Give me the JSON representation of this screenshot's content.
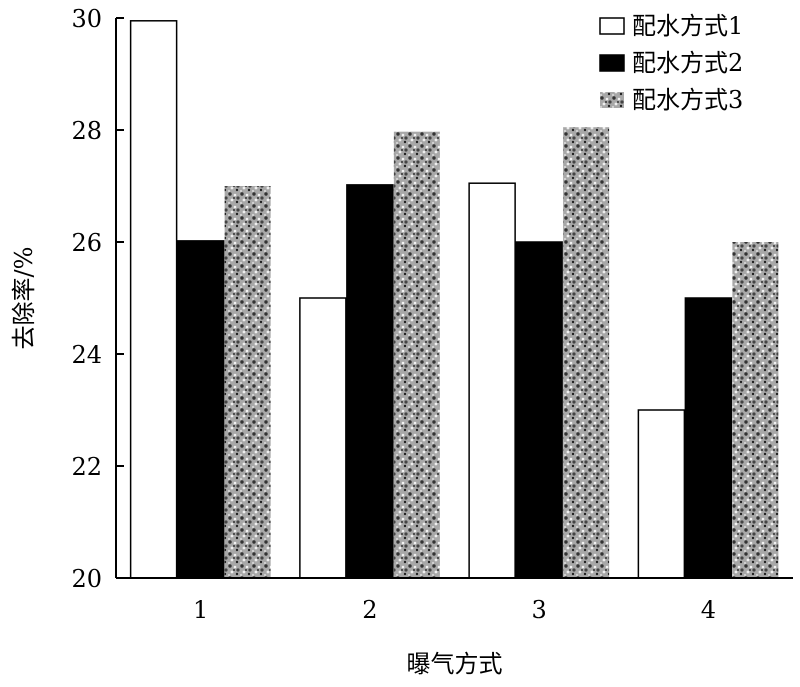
{
  "chart_data": {
    "type": "bar",
    "categories": [
      "1",
      "2",
      "3",
      "4"
    ],
    "series": [
      {
        "name": "配水方式1",
        "values": [
          29.95,
          25.0,
          27.05,
          23.0
        ]
      },
      {
        "name": "配水方式2",
        "values": [
          26.02,
          27.02,
          26.0,
          25.0
        ]
      },
      {
        "name": "配水方式3",
        "values": [
          27.0,
          27.97,
          28.05,
          26.0
        ]
      }
    ],
    "xlabel": "曝气方式",
    "ylabel": "去除率/%",
    "ylim": [
      20,
      30
    ],
    "yticks": [
      "20",
      "22",
      "24",
      "26",
      "28",
      "30"
    ],
    "legend_position": "top-right",
    "grid": false,
    "series_styles": [
      "white",
      "black",
      "gravel-pattern"
    ],
    "colors": {
      "stroke": "#000000",
      "fill_1": "#ffffff",
      "fill_2": "#000000",
      "fill_3": "#888888"
    }
  }
}
